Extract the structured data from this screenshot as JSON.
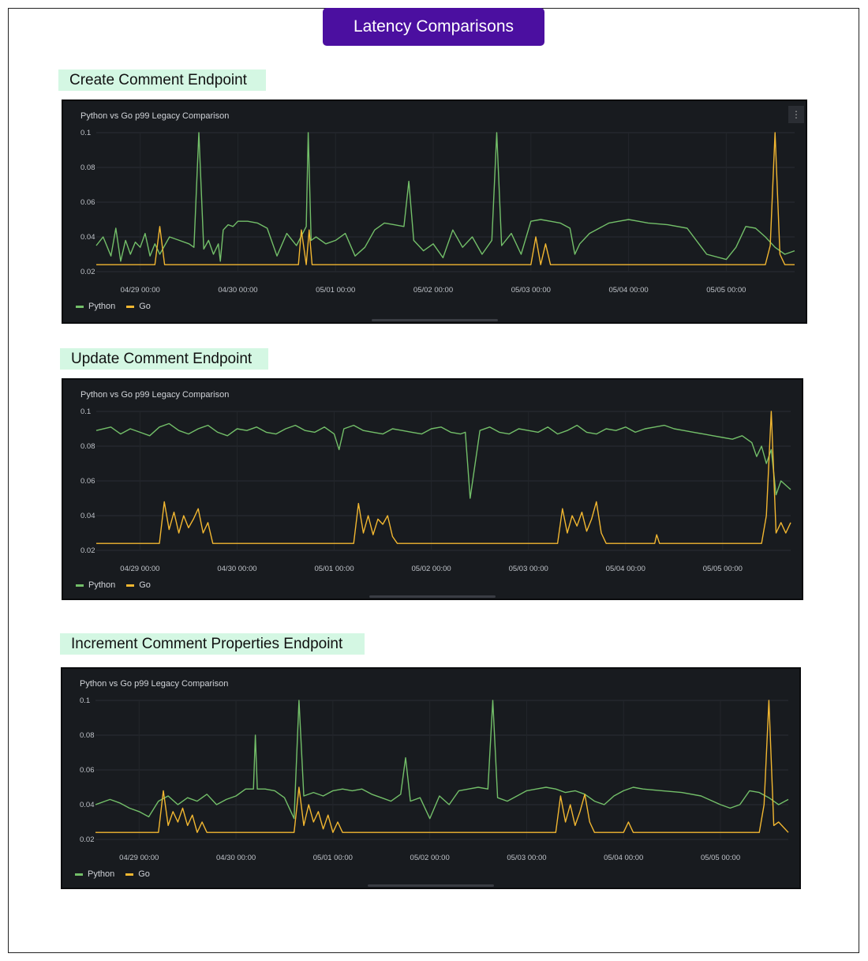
{
  "header": {
    "title": "Latency Comparisons"
  },
  "sections": [
    {
      "label": "Create Comment Endpoint"
    },
    {
      "label": "Update Comment Endpoint"
    },
    {
      "label": "Increment Comment Properties Endpoint"
    }
  ],
  "colors": {
    "python": "#73bf69",
    "go": "#f2b731",
    "panel_bg": "#181b1f",
    "title_bg": "#4b0fa0",
    "label_bg": "#d4f7e3"
  },
  "chart_data": [
    {
      "type": "line",
      "title": "Python vs Go p99 Legacy Comparison",
      "y_ticks": [
        "0.1",
        "0.08",
        "0.06",
        "0.04",
        "0.02"
      ],
      "ylim": [
        0.02,
        0.1
      ],
      "x_ticks": [
        "04/29 00:00",
        "04/30 00:00",
        "05/01 00:00",
        "05/02 00:00",
        "05/03 00:00",
        "05/04 00:00",
        "05/05 00:00"
      ],
      "xlim": [
        -0.45,
        6.7
      ],
      "legend": "bottom-left",
      "series": [
        {
          "name": "Python",
          "color": "#73bf69",
          "x": [
            -0.45,
            -0.38,
            -0.3,
            -0.25,
            -0.2,
            -0.15,
            -0.1,
            -0.05,
            0.0,
            0.05,
            0.1,
            0.15,
            0.2,
            0.3,
            0.4,
            0.5,
            0.55,
            0.6,
            0.65,
            0.7,
            0.75,
            0.8,
            0.82,
            0.85,
            0.9,
            0.95,
            1.0,
            1.1,
            1.2,
            1.3,
            1.4,
            1.5,
            1.6,
            1.7,
            1.72,
            1.75,
            1.8,
            1.9,
            2.0,
            2.1,
            2.2,
            2.3,
            2.4,
            2.5,
            2.6,
            2.7,
            2.75,
            2.8,
            2.9,
            3.0,
            3.1,
            3.2,
            3.3,
            3.4,
            3.5,
            3.6,
            3.65,
            3.7,
            3.8,
            3.9,
            4.0,
            4.1,
            4.2,
            4.3,
            4.4,
            4.45,
            4.5,
            4.6,
            4.7,
            4.8,
            4.9,
            5.0,
            5.1,
            5.2,
            5.4,
            5.6,
            5.8,
            6.0,
            6.1,
            6.2,
            6.3,
            6.4,
            6.5,
            6.6,
            6.7
          ],
          "y": [
            0.035,
            0.04,
            0.029,
            0.045,
            0.026,
            0.038,
            0.03,
            0.037,
            0.034,
            0.042,
            0.029,
            0.036,
            0.03,
            0.04,
            0.038,
            0.036,
            0.034,
            0.1,
            0.033,
            0.038,
            0.03,
            0.036,
            0.026,
            0.044,
            0.047,
            0.046,
            0.049,
            0.049,
            0.048,
            0.045,
            0.029,
            0.042,
            0.035,
            0.046,
            0.1,
            0.038,
            0.04,
            0.036,
            0.038,
            0.042,
            0.029,
            0.034,
            0.044,
            0.048,
            0.047,
            0.046,
            0.072,
            0.038,
            0.032,
            0.036,
            0.028,
            0.044,
            0.034,
            0.04,
            0.03,
            0.038,
            0.1,
            0.035,
            0.042,
            0.03,
            0.049,
            0.05,
            0.049,
            0.048,
            0.045,
            0.03,
            0.036,
            0.042,
            0.045,
            0.048,
            0.049,
            0.05,
            0.049,
            0.048,
            0.047,
            0.045,
            0.03,
            0.027,
            0.034,
            0.046,
            0.045,
            0.04,
            0.034,
            0.03,
            0.032
          ]
        },
        {
          "name": "Go",
          "color": "#f2b731",
          "x": [
            -0.45,
            0.15,
            0.2,
            0.25,
            0.3,
            1.5,
            1.62,
            1.65,
            1.7,
            1.73,
            1.76,
            1.8,
            4.0,
            4.05,
            4.1,
            4.15,
            4.2,
            6.3,
            6.4,
            6.45,
            6.5,
            6.55,
            6.6,
            6.7
          ],
          "y": [
            0.024,
            0.024,
            0.046,
            0.024,
            0.024,
            0.024,
            0.024,
            0.044,
            0.024,
            0.044,
            0.024,
            0.024,
            0.024,
            0.04,
            0.024,
            0.036,
            0.024,
            0.024,
            0.024,
            0.035,
            0.1,
            0.03,
            0.024,
            0.024
          ]
        }
      ]
    },
    {
      "type": "line",
      "title": "Python vs Go p99 Legacy Comparison",
      "y_ticks": [
        "0.1",
        "0.08",
        "0.06",
        "0.04",
        "0.02"
      ],
      "ylim": [
        0.02,
        0.1
      ],
      "x_ticks": [
        "04/29 00:00",
        "04/30 00:00",
        "05/01 00:00",
        "05/02 00:00",
        "05/03 00:00",
        "05/04 00:00",
        "05/05 00:00"
      ],
      "xlim": [
        -0.45,
        6.7
      ],
      "legend": "bottom-left",
      "series": [
        {
          "name": "Python",
          "color": "#73bf69",
          "x": [
            -0.45,
            -0.3,
            -0.2,
            -0.1,
            0.0,
            0.1,
            0.2,
            0.3,
            0.4,
            0.5,
            0.6,
            0.7,
            0.8,
            0.9,
            1.0,
            1.1,
            1.2,
            1.3,
            1.4,
            1.5,
            1.6,
            1.7,
            1.8,
            1.9,
            2.0,
            2.05,
            2.1,
            2.2,
            2.3,
            2.4,
            2.5,
            2.6,
            2.7,
            2.8,
            2.9,
            3.0,
            3.1,
            3.2,
            3.3,
            3.35,
            3.4,
            3.5,
            3.6,
            3.7,
            3.8,
            3.9,
            4.0,
            4.1,
            4.2,
            4.3,
            4.4,
            4.5,
            4.6,
            4.7,
            4.8,
            4.9,
            5.0,
            5.1,
            5.2,
            5.3,
            5.4,
            5.5,
            5.6,
            5.7,
            5.8,
            5.9,
            6.0,
            6.1,
            6.2,
            6.3,
            6.35,
            6.4,
            6.45,
            6.5,
            6.55,
            6.6,
            6.7
          ],
          "y": [
            0.089,
            0.091,
            0.087,
            0.09,
            0.088,
            0.086,
            0.091,
            0.093,
            0.089,
            0.087,
            0.09,
            0.092,
            0.088,
            0.086,
            0.09,
            0.089,
            0.091,
            0.088,
            0.087,
            0.09,
            0.092,
            0.089,
            0.088,
            0.091,
            0.087,
            0.078,
            0.09,
            0.092,
            0.089,
            0.088,
            0.087,
            0.09,
            0.089,
            0.088,
            0.087,
            0.09,
            0.091,
            0.088,
            0.087,
            0.088,
            0.05,
            0.089,
            0.091,
            0.088,
            0.087,
            0.09,
            0.089,
            0.088,
            0.091,
            0.087,
            0.089,
            0.092,
            0.088,
            0.087,
            0.09,
            0.089,
            0.091,
            0.088,
            0.09,
            0.091,
            0.092,
            0.09,
            0.089,
            0.088,
            0.087,
            0.086,
            0.085,
            0.084,
            0.086,
            0.082,
            0.074,
            0.08,
            0.07,
            0.078,
            0.052,
            0.06,
            0.055
          ]
        },
        {
          "name": "Go",
          "color": "#f2b731",
          "x": [
            -0.45,
            0.2,
            0.25,
            0.3,
            0.35,
            0.4,
            0.45,
            0.5,
            0.55,
            0.6,
            0.65,
            0.7,
            0.75,
            2.2,
            2.25,
            2.3,
            2.35,
            2.4,
            2.45,
            2.5,
            2.55,
            2.6,
            2.65,
            4.3,
            4.35,
            4.4,
            4.45,
            4.5,
            4.55,
            4.6,
            4.65,
            4.7,
            4.75,
            4.8,
            5.3,
            5.32,
            5.35,
            6.3,
            6.4,
            6.45,
            6.5,
            6.55,
            6.6,
            6.65,
            6.7
          ],
          "y": [
            0.024,
            0.024,
            0.048,
            0.032,
            0.042,
            0.03,
            0.04,
            0.033,
            0.038,
            0.044,
            0.03,
            0.036,
            0.024,
            0.024,
            0.047,
            0.03,
            0.04,
            0.029,
            0.038,
            0.035,
            0.04,
            0.028,
            0.024,
            0.024,
            0.044,
            0.03,
            0.04,
            0.034,
            0.042,
            0.031,
            0.038,
            0.048,
            0.03,
            0.024,
            0.024,
            0.029,
            0.024,
            0.024,
            0.024,
            0.04,
            0.1,
            0.03,
            0.036,
            0.03,
            0.036
          ]
        }
      ]
    },
    {
      "type": "line",
      "title": "Python vs Go p99 Legacy Comparison",
      "y_ticks": [
        "0.1",
        "0.08",
        "0.06",
        "0.04",
        "0.02"
      ],
      "ylim": [
        0.02,
        0.1
      ],
      "x_ticks": [
        "04/29 00:00",
        "04/30 00:00",
        "05/01 00:00",
        "05/02 00:00",
        "05/03 00:00",
        "05/04 00:00",
        "05/05 00:00"
      ],
      "xlim": [
        -0.45,
        6.7
      ],
      "legend": "bottom-left",
      "series": [
        {
          "name": "Python",
          "color": "#73bf69",
          "x": [
            -0.45,
            -0.3,
            -0.2,
            -0.1,
            0.0,
            0.1,
            0.2,
            0.3,
            0.4,
            0.5,
            0.6,
            0.7,
            0.8,
            0.9,
            1.0,
            1.1,
            1.18,
            1.2,
            1.22,
            1.3,
            1.4,
            1.5,
            1.6,
            1.65,
            1.7,
            1.8,
            1.9,
            2.0,
            2.1,
            2.2,
            2.3,
            2.4,
            2.5,
            2.6,
            2.7,
            2.75,
            2.8,
            2.9,
            3.0,
            3.1,
            3.2,
            3.3,
            3.4,
            3.5,
            3.6,
            3.65,
            3.7,
            3.8,
            3.9,
            4.0,
            4.1,
            4.2,
            4.3,
            4.4,
            4.5,
            4.6,
            4.7,
            4.8,
            4.9,
            5.0,
            5.1,
            5.2,
            5.4,
            5.6,
            5.8,
            6.0,
            6.1,
            6.2,
            6.3,
            6.4,
            6.5,
            6.6,
            6.7
          ],
          "y": [
            0.04,
            0.043,
            0.041,
            0.038,
            0.036,
            0.033,
            0.042,
            0.045,
            0.04,
            0.044,
            0.042,
            0.046,
            0.04,
            0.043,
            0.045,
            0.049,
            0.049,
            0.08,
            0.049,
            0.049,
            0.048,
            0.044,
            0.032,
            0.1,
            0.045,
            0.047,
            0.045,
            0.048,
            0.049,
            0.048,
            0.049,
            0.046,
            0.044,
            0.042,
            0.046,
            0.067,
            0.042,
            0.044,
            0.032,
            0.045,
            0.04,
            0.048,
            0.049,
            0.05,
            0.049,
            0.1,
            0.044,
            0.042,
            0.045,
            0.048,
            0.049,
            0.05,
            0.049,
            0.047,
            0.048,
            0.046,
            0.042,
            0.04,
            0.045,
            0.048,
            0.05,
            0.049,
            0.048,
            0.047,
            0.045,
            0.04,
            0.038,
            0.04,
            0.048,
            0.047,
            0.044,
            0.04,
            0.043
          ]
        },
        {
          "name": "Go",
          "color": "#f2b731",
          "x": [
            -0.45,
            0.2,
            0.25,
            0.3,
            0.35,
            0.4,
            0.45,
            0.5,
            0.55,
            0.6,
            0.65,
            0.7,
            1.6,
            1.65,
            1.7,
            1.75,
            1.8,
            1.85,
            1.9,
            1.95,
            2.0,
            2.05,
            2.1,
            2.15,
            4.3,
            4.35,
            4.4,
            4.45,
            4.5,
            4.55,
            4.6,
            4.65,
            4.7,
            5.0,
            5.05,
            5.1,
            6.3,
            6.4,
            6.45,
            6.5,
            6.55,
            6.6,
            6.7
          ],
          "y": [
            0.024,
            0.024,
            0.048,
            0.028,
            0.036,
            0.03,
            0.038,
            0.028,
            0.034,
            0.024,
            0.03,
            0.024,
            0.024,
            0.05,
            0.028,
            0.04,
            0.03,
            0.036,
            0.026,
            0.034,
            0.024,
            0.03,
            0.024,
            0.024,
            0.024,
            0.045,
            0.03,
            0.04,
            0.028,
            0.036,
            0.046,
            0.03,
            0.024,
            0.024,
            0.03,
            0.024,
            0.024,
            0.024,
            0.04,
            0.1,
            0.028,
            0.03,
            0.024
          ]
        }
      ]
    }
  ]
}
